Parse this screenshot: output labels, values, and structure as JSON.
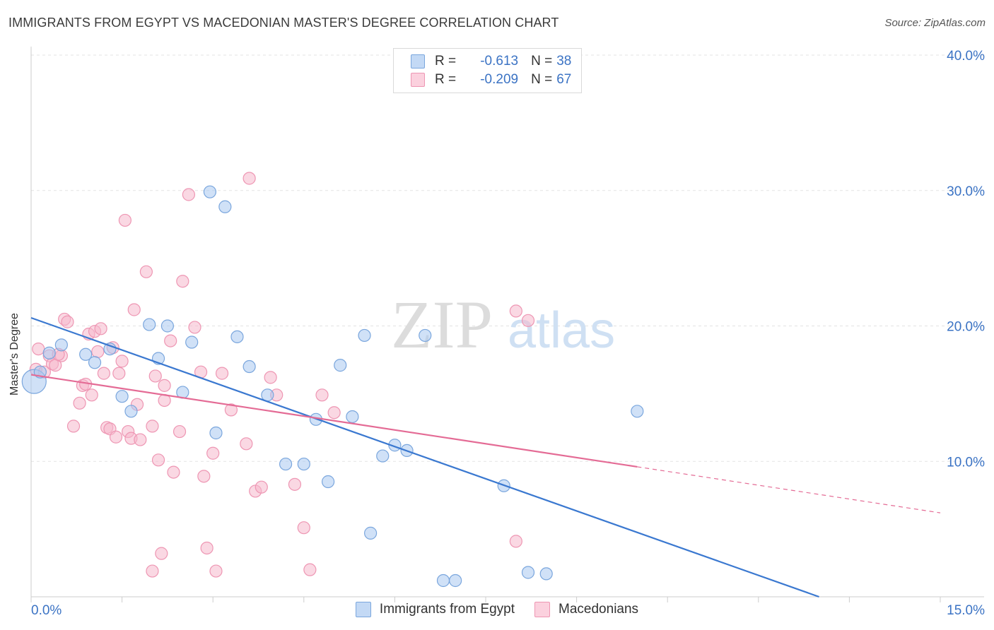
{
  "header": {
    "title": "IMMIGRANTS FROM EGYPT VS MACEDONIAN MASTER'S DEGREE CORRELATION CHART",
    "source": "Source: ZipAtlas.com"
  },
  "watermark": {
    "zip": "ZIP",
    "atlas": "atlas"
  },
  "legend": {
    "r_label": "R =",
    "n_label": "N =",
    "rows": [
      {
        "r": "-0.613",
        "n": "38"
      },
      {
        "r": "-0.209",
        "n": "67"
      }
    ]
  },
  "colors": {
    "blue_fill": "#a9c8f0",
    "blue_stroke": "#7aa6dd",
    "blue_line": "#3a78d0",
    "pink_fill": "#f6b8cc",
    "pink_stroke": "#ee96b3",
    "pink_line": "#e46b95",
    "axis_text": "#3b73c4",
    "grid": "#e3e3e3"
  },
  "chart_data": {
    "type": "scatter",
    "title": "IMMIGRANTS FROM EGYPT VS MACEDONIAN MASTER'S DEGREE CORRELATION CHART",
    "xlabel": "",
    "ylabel": "Master's Degree",
    "xlim": [
      0,
      15
    ],
    "ylim": [
      0,
      40
    ],
    "x_tick_labels": [
      "0.0%",
      "15.0%"
    ],
    "y_ticks": [
      10,
      20,
      30,
      40
    ],
    "y_tick_labels": [
      "10.0%",
      "20.0%",
      "30.0%",
      "40.0%"
    ],
    "legend_position": "top-center",
    "series": [
      {
        "name": "Immigrants from Egypt",
        "r": -0.613,
        "n": 38,
        "trend": {
          "x0": 0,
          "y0": 20.6,
          "x1": 13.0,
          "y1": 0.0,
          "solid_to": 13.0
        },
        "points": [
          {
            "x": 0.05,
            "y": 15.9,
            "big": true
          },
          {
            "x": 0.3,
            "y": 18.0
          },
          {
            "x": 0.5,
            "y": 18.6
          },
          {
            "x": 0.9,
            "y": 17.9
          },
          {
            "x": 1.05,
            "y": 17.3
          },
          {
            "x": 1.3,
            "y": 18.3
          },
          {
            "x": 1.5,
            "y": 14.8
          },
          {
            "x": 1.65,
            "y": 13.7
          },
          {
            "x": 1.95,
            "y": 20.1
          },
          {
            "x": 2.1,
            "y": 17.6
          },
          {
            "x": 2.25,
            "y": 20.0
          },
          {
            "x": 2.5,
            "y": 15.1
          },
          {
            "x": 2.65,
            "y": 18.8
          },
          {
            "x": 2.95,
            "y": 29.9
          },
          {
            "x": 3.05,
            "y": 12.1
          },
          {
            "x": 3.2,
            "y": 28.8
          },
          {
            "x": 3.4,
            "y": 19.2
          },
          {
            "x": 3.6,
            "y": 17.0
          },
          {
            "x": 3.9,
            "y": 14.9
          },
          {
            "x": 4.2,
            "y": 9.8
          },
          {
            "x": 4.5,
            "y": 9.8
          },
          {
            "x": 4.7,
            "y": 13.1
          },
          {
            "x": 4.9,
            "y": 8.5
          },
          {
            "x": 5.1,
            "y": 17.1
          },
          {
            "x": 5.3,
            "y": 13.3
          },
          {
            "x": 5.5,
            "y": 19.3
          },
          {
            "x": 5.6,
            "y": 4.7
          },
          {
            "x": 5.8,
            "y": 10.4
          },
          {
            "x": 6.0,
            "y": 11.2
          },
          {
            "x": 6.2,
            "y": 10.8
          },
          {
            "x": 6.5,
            "y": 19.3
          },
          {
            "x": 6.8,
            "y": 1.2
          },
          {
            "x": 7.0,
            "y": 1.2
          },
          {
            "x": 7.8,
            "y": 8.2
          },
          {
            "x": 8.2,
            "y": 1.8
          },
          {
            "x": 8.5,
            "y": 1.7
          },
          {
            "x": 10.0,
            "y": 13.7
          },
          {
            "x": 0.15,
            "y": 16.6
          }
        ]
      },
      {
        "name": "Macedonians",
        "r": -0.209,
        "n": 67,
        "trend": {
          "x0": 0,
          "y0": 16.4,
          "x1": 15.0,
          "y1": 6.2,
          "solid_to": 10.0
        },
        "points": [
          {
            "x": 0.08,
            "y": 16.8
          },
          {
            "x": 0.12,
            "y": 18.3
          },
          {
            "x": 0.22,
            "y": 16.6
          },
          {
            "x": 0.3,
            "y": 17.8
          },
          {
            "x": 0.35,
            "y": 17.2
          },
          {
            "x": 0.4,
            "y": 17.1
          },
          {
            "x": 0.5,
            "y": 17.8
          },
          {
            "x": 0.55,
            "y": 20.5
          },
          {
            "x": 0.6,
            "y": 20.3
          },
          {
            "x": 0.7,
            "y": 12.6
          },
          {
            "x": 0.8,
            "y": 14.3
          },
          {
            "x": 0.85,
            "y": 15.6
          },
          {
            "x": 0.95,
            "y": 19.4
          },
          {
            "x": 1.0,
            "y": 14.9
          },
          {
            "x": 1.05,
            "y": 19.6
          },
          {
            "x": 1.1,
            "y": 18.1
          },
          {
            "x": 1.15,
            "y": 19.8
          },
          {
            "x": 1.25,
            "y": 12.5
          },
          {
            "x": 1.3,
            "y": 12.4
          },
          {
            "x": 1.35,
            "y": 18.4
          },
          {
            "x": 1.4,
            "y": 11.8
          },
          {
            "x": 1.45,
            "y": 16.5
          },
          {
            "x": 1.55,
            "y": 27.8
          },
          {
            "x": 1.6,
            "y": 12.2
          },
          {
            "x": 1.65,
            "y": 11.7
          },
          {
            "x": 1.7,
            "y": 21.2
          },
          {
            "x": 1.75,
            "y": 14.2
          },
          {
            "x": 1.8,
            "y": 11.6
          },
          {
            "x": 1.9,
            "y": 24.0
          },
          {
            "x": 2.0,
            "y": 12.6
          },
          {
            "x": 2.05,
            "y": 16.3
          },
          {
            "x": 2.1,
            "y": 10.1
          },
          {
            "x": 2.15,
            "y": 3.2
          },
          {
            "x": 2.2,
            "y": 15.6
          },
          {
            "x": 2.3,
            "y": 18.9
          },
          {
            "x": 2.35,
            "y": 9.2
          },
          {
            "x": 2.45,
            "y": 12.2
          },
          {
            "x": 2.5,
            "y": 23.3
          },
          {
            "x": 2.6,
            "y": 29.7
          },
          {
            "x": 2.7,
            "y": 19.9
          },
          {
            "x": 2.8,
            "y": 16.6
          },
          {
            "x": 2.85,
            "y": 8.9
          },
          {
            "x": 2.9,
            "y": 3.6
          },
          {
            "x": 3.0,
            "y": 10.6
          },
          {
            "x": 3.05,
            "y": 1.9
          },
          {
            "x": 3.15,
            "y": 16.5
          },
          {
            "x": 3.3,
            "y": 13.8
          },
          {
            "x": 3.55,
            "y": 11.3
          },
          {
            "x": 3.6,
            "y": 30.9
          },
          {
            "x": 3.7,
            "y": 7.8
          },
          {
            "x": 3.8,
            "y": 8.1
          },
          {
            "x": 3.95,
            "y": 16.2
          },
          {
            "x": 4.05,
            "y": 14.9
          },
          {
            "x": 4.35,
            "y": 8.3
          },
          {
            "x": 4.5,
            "y": 5.1
          },
          {
            "x": 4.6,
            "y": 2.0
          },
          {
            "x": 4.8,
            "y": 14.9
          },
          {
            "x": 5.0,
            "y": 13.6
          },
          {
            "x": 2.0,
            "y": 1.9
          },
          {
            "x": 1.2,
            "y": 16.5
          },
          {
            "x": 8.0,
            "y": 21.1
          },
          {
            "x": 8.2,
            "y": 20.4
          },
          {
            "x": 8.0,
            "y": 4.1
          },
          {
            "x": 0.9,
            "y": 15.7
          },
          {
            "x": 1.5,
            "y": 17.4
          },
          {
            "x": 0.45,
            "y": 17.9
          },
          {
            "x": 2.2,
            "y": 14.5
          }
        ]
      }
    ]
  }
}
